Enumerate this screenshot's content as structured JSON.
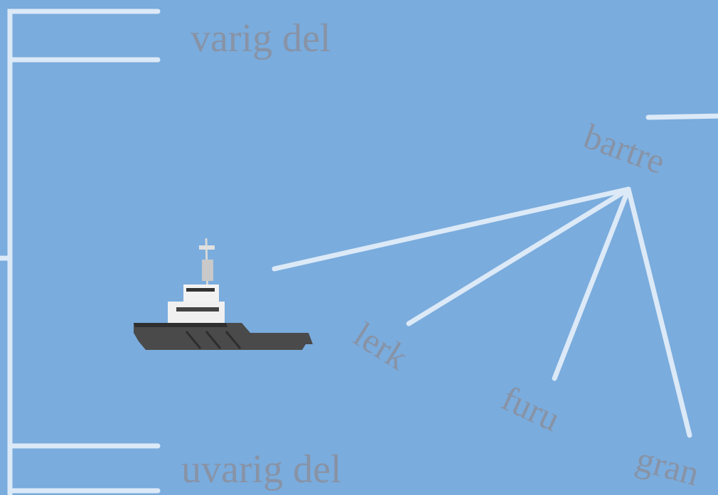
{
  "labels": {
    "top": "varig del",
    "bottom": "uvarig del"
  },
  "nodes": [
    {
      "label": "bartre"
    },
    {
      "label": "lerk"
    },
    {
      "label": "furu"
    },
    {
      "label": "gran"
    }
  ]
}
